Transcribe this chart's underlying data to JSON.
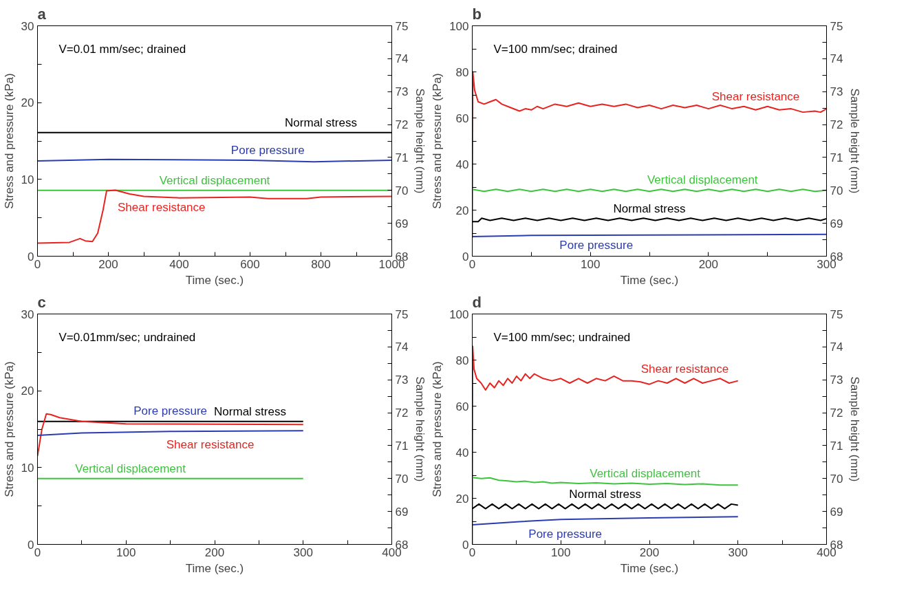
{
  "chart_data": [
    {
      "type": "line",
      "title": "a",
      "annotations": [
        "V=0.01 mm/sec; drained"
      ],
      "xlabel": "Time (sec.)",
      "ylabel": "Stress and pressure (kPa)",
      "y2label": "Sample height (mm)",
      "grid": false,
      "xlim": [
        0,
        1000
      ],
      "xticks": [
        0,
        {
          "value": 100,
          "label": null
        },
        200,
        {
          "value": 300,
          "label": null
        },
        400,
        {
          "value": 500,
          "label": null
        },
        600,
        {
          "value": 700,
          "label": null
        },
        800,
        {
          "value": 900,
          "label": null
        },
        1000
      ],
      "ylim": [
        0,
        30
      ],
      "yticks": [
        0,
        {
          "value": 5,
          "label": null
        },
        10,
        {
          "value": 15,
          "label": null
        },
        20,
        {
          "value": 25,
          "label": null
        },
        30
      ],
      "y2lim": [
        68,
        75
      ],
      "y2ticks": [
        68,
        {
          "value": 68.5,
          "label": null
        },
        69,
        {
          "value": 69.5,
          "label": null
        },
        70,
        {
          "value": 70.5,
          "label": null
        },
        71,
        {
          "value": 71.5,
          "label": null
        },
        72,
        {
          "value": 72.5,
          "label": null
        },
        73,
        {
          "value": 73.5,
          "label": null
        },
        74,
        {
          "value": 74.5,
          "label": null
        },
        75
      ],
      "series": [
        {
          "name": "Normal stress",
          "color": "#000000",
          "x": [
            0,
            1000
          ],
          "values": [
            16.1,
            16.1
          ]
        },
        {
          "name": "Pore pressure",
          "color": "#2b3bb0",
          "x": [
            0,
            200,
            600,
            780,
            1000
          ],
          "values": [
            12.4,
            12.6,
            12.5,
            12.3,
            12.5
          ]
        },
        {
          "name": "Vertical displacement",
          "color": "#3cc43c",
          "axis": "y2",
          "x": [
            0,
            1000
          ],
          "values": [
            70.0,
            70.0
          ]
        },
        {
          "name": "Shear resistance",
          "color": "#e8231f",
          "x": [
            0,
            90,
            120,
            135,
            155,
            170,
            185,
            195,
            220,
            260,
            300,
            400,
            600,
            650,
            760,
            800,
            1000
          ],
          "values": [
            1.7,
            1.8,
            2.3,
            2.0,
            1.9,
            3.0,
            6.0,
            8.5,
            8.6,
            8.1,
            7.8,
            7.6,
            7.7,
            7.5,
            7.5,
            7.7,
            7.8
          ]
        }
      ]
    },
    {
      "type": "line",
      "title": "b",
      "annotations": [
        "V=100 mm/sec; drained"
      ],
      "xlabel": "Time (sec.)",
      "ylabel": "Stress and pressure (kPa)",
      "y2label": "Sample height (mm)",
      "grid": false,
      "xlim": [
        0,
        300
      ],
      "xticks": [
        0,
        {
          "value": 50,
          "label": null
        },
        100,
        {
          "value": 150,
          "label": null
        },
        200,
        {
          "value": 250,
          "label": null
        },
        300
      ],
      "ylim": [
        0,
        100
      ],
      "yticks": [
        0,
        {
          "value": 10,
          "label": null
        },
        20,
        {
          "value": 30,
          "label": null
        },
        40,
        {
          "value": 50,
          "label": null
        },
        60,
        {
          "value": 70,
          "label": null
        },
        80,
        {
          "value": 90,
          "label": null
        },
        100
      ],
      "y2lim": [
        68,
        75
      ],
      "y2ticks": [
        68,
        {
          "value": 68.5,
          "label": null
        },
        69,
        {
          "value": 69.5,
          "label": null
        },
        70,
        {
          "value": 70.5,
          "label": null
        },
        71,
        {
          "value": 71.5,
          "label": null
        },
        72,
        {
          "value": 72.5,
          "label": null
        },
        73,
        {
          "value": 73.5,
          "label": null
        },
        74,
        {
          "value": 74.5,
          "label": null
        },
        75
      ],
      "series": [
        {
          "name": "Shear resistance",
          "color": "#e8231f",
          "x": [
            0,
            0.5,
            2,
            5,
            10,
            15,
            20,
            25,
            30,
            40,
            45,
            50,
            55,
            60,
            70,
            80,
            90,
            100,
            110,
            120,
            130,
            140,
            150,
            160,
            170,
            180,
            190,
            200,
            210,
            220,
            230,
            240,
            250,
            260,
            270,
            280,
            290,
            295,
            300
          ],
          "values": [
            8,
            80,
            72,
            67,
            66,
            67,
            68,
            66,
            65,
            63,
            64,
            63.5,
            65,
            64,
            66,
            65,
            66.5,
            65,
            66,
            65,
            66,
            64.5,
            65.5,
            64,
            65.5,
            64.5,
            65.5,
            64,
            65.5,
            64,
            65,
            63.5,
            65,
            63.5,
            64,
            62.5,
            63,
            62.5,
            64
          ]
        },
        {
          "name": "Vertical displacement",
          "color": "#3cc43c",
          "axis": "y2",
          "x": [
            0,
            10,
            20,
            30,
            40,
            50,
            60,
            70,
            80,
            90,
            100,
            110,
            120,
            130,
            140,
            150,
            160,
            170,
            180,
            190,
            200,
            210,
            220,
            230,
            240,
            250,
            260,
            270,
            280,
            290,
            300
          ],
          "values": [
            70.03,
            69.97,
            70.03,
            69.97,
            70.03,
            69.97,
            70.03,
            69.97,
            70.03,
            69.97,
            70.03,
            69.97,
            70.03,
            69.97,
            70.03,
            69.97,
            70.03,
            69.97,
            70.03,
            69.97,
            70.03,
            69.97,
            70.03,
            69.97,
            70.03,
            69.97,
            70.03,
            69.97,
            70.03,
            69.97,
            70.0
          ]
        },
        {
          "name": "Normal stress",
          "color": "#000000",
          "x": [
            0,
            5,
            8,
            15,
            25,
            35,
            45,
            55,
            65,
            75,
            85,
            95,
            105,
            115,
            125,
            135,
            145,
            155,
            165,
            175,
            185,
            195,
            205,
            215,
            225,
            235,
            245,
            255,
            265,
            275,
            285,
            295,
            300
          ],
          "values": [
            15,
            15,
            16.5,
            15.5,
            16.5,
            15.5,
            16.5,
            15.5,
            16.5,
            15.5,
            16.5,
            15.5,
            16.5,
            15.5,
            16.5,
            15.5,
            16.5,
            15.5,
            16.5,
            15.5,
            16.5,
            15.5,
            16.5,
            15.5,
            16.5,
            15.5,
            16.5,
            15.5,
            16.5,
            15.5,
            16.5,
            15.5,
            16.3
          ]
        },
        {
          "name": "Pore pressure",
          "color": "#2b3bb0",
          "x": [
            0,
            50,
            300
          ],
          "values": [
            8.5,
            9,
            9.5
          ]
        }
      ]
    },
    {
      "type": "line",
      "title": "c",
      "annotations": [
        "V=0.01mm/sec; undrained"
      ],
      "xlabel": "Time (sec.)",
      "ylabel": "Stress and pressure (kPa)",
      "y2label": "Sample height (mm)",
      "grid": false,
      "xlim": [
        0,
        400
      ],
      "xticks": [
        0,
        {
          "value": 50,
          "label": null
        },
        100,
        {
          "value": 150,
          "label": null
        },
        200,
        {
          "value": 250,
          "label": null
        },
        300,
        {
          "value": 350,
          "label": null
        },
        400
      ],
      "ylim": [
        0,
        30
      ],
      "yticks": [
        0,
        {
          "value": 5,
          "label": null
        },
        10,
        {
          "value": 15,
          "label": null
        },
        20,
        {
          "value": 25,
          "label": null
        },
        30
      ],
      "y2lim": [
        68,
        75
      ],
      "y2ticks": [
        68,
        {
          "value": 68.5,
          "label": null
        },
        69,
        {
          "value": 69.5,
          "label": null
        },
        70,
        {
          "value": 70.5,
          "label": null
        },
        71,
        {
          "value": 71.5,
          "label": null
        },
        72,
        {
          "value": 72.5,
          "label": null
        },
        73,
        {
          "value": 73.5,
          "label": null
        },
        74,
        {
          "value": 74.5,
          "label": null
        },
        75
      ],
      "series": [
        {
          "name": "Normal stress",
          "color": "#000000",
          "x": [
            0,
            300
          ],
          "values": [
            16,
            16
          ]
        },
        {
          "name": "Shear resistance",
          "color": "#e8231f",
          "x": [
            0,
            5,
            10,
            15,
            25,
            50,
            100,
            300
          ],
          "values": [
            11.5,
            15,
            17,
            16.9,
            16.5,
            16.0,
            15.7,
            15.6
          ]
        },
        {
          "name": "Pore pressure",
          "color": "#2b3bb0",
          "x": [
            0,
            50,
            150,
            300
          ],
          "values": [
            14.2,
            14.5,
            14.7,
            14.8
          ]
        },
        {
          "name": "Vertical displacement",
          "color": "#3cc43c",
          "axis": "y2",
          "x": [
            0,
            300
          ],
          "values": [
            70.0,
            70.0
          ]
        }
      ]
    },
    {
      "type": "line",
      "title": "d",
      "annotations": [
        "V=100 mm/sec; undrained"
      ],
      "xlabel": "Time (sec.)",
      "ylabel": "Stress and pressure (kPa)",
      "y2label": "Sample height (mm)",
      "grid": false,
      "xlim": [
        0,
        400
      ],
      "xticks": [
        0,
        {
          "value": 50,
          "label": null
        },
        100,
        {
          "value": 150,
          "label": null
        },
        200,
        {
          "value": 250,
          "label": null
        },
        300,
        {
          "value": 350,
          "label": null
        },
        400
      ],
      "ylim": [
        0,
        100
      ],
      "yticks": [
        0,
        {
          "value": 10,
          "label": null
        },
        20,
        {
          "value": 30,
          "label": null
        },
        40,
        {
          "value": 50,
          "label": null
        },
        60,
        {
          "value": 70,
          "label": null
        },
        80,
        {
          "value": 90,
          "label": null
        },
        100
      ],
      "y2lim": [
        68,
        75
      ],
      "y2ticks": [
        68,
        {
          "value": 68.5,
          "label": null
        },
        69,
        {
          "value": 69.5,
          "label": null
        },
        70,
        {
          "value": 70.5,
          "label": null
        },
        71,
        {
          "value": 71.5,
          "label": null
        },
        72,
        {
          "value": 72.5,
          "label": null
        },
        73,
        {
          "value": 73.5,
          "label": null
        },
        74,
        {
          "value": 74.5,
          "label": null
        },
        75
      ],
      "series": [
        {
          "name": "Shear resistance",
          "color": "#e8231f",
          "x": [
            0,
            0.5,
            2,
            5,
            10,
            15,
            20,
            25,
            30,
            35,
            40,
            45,
            50,
            55,
            60,
            65,
            70,
            80,
            90,
            100,
            110,
            120,
            130,
            140,
            150,
            160,
            170,
            180,
            190,
            200,
            210,
            220,
            230,
            240,
            250,
            260,
            270,
            280,
            290,
            300
          ],
          "values": [
            0,
            86,
            76,
            72,
            70,
            67,
            70,
            68,
            71,
            69,
            72,
            70,
            73,
            71,
            74,
            72,
            74,
            72,
            71,
            72,
            70,
            72,
            70,
            72,
            71,
            73,
            71,
            71,
            70.5,
            69.5,
            71,
            70,
            72,
            70,
            72,
            70,
            71,
            72,
            70,
            71
          ]
        },
        {
          "name": "Vertical displacement",
          "color": "#3cc43c",
          "axis": "y2",
          "x": [
            0,
            10,
            20,
            30,
            40,
            50,
            60,
            70,
            80,
            90,
            100,
            120,
            140,
            160,
            180,
            200,
            220,
            240,
            260,
            280,
            300
          ],
          "values": [
            70.03,
            70.0,
            70.02,
            69.95,
            69.93,
            69.9,
            69.92,
            69.88,
            69.9,
            69.86,
            69.88,
            69.85,
            69.87,
            69.84,
            69.86,
            69.83,
            69.85,
            69.82,
            69.84,
            69.8,
            69.8
          ]
        },
        {
          "name": "Normal stress",
          "color": "#000000",
          "x": [
            0,
            7.5,
            15,
            22.5,
            30,
            37.5,
            45,
            52.5,
            60,
            67.5,
            75,
            82.5,
            90,
            97.5,
            105,
            112.5,
            120,
            127.5,
            135,
            142.5,
            150,
            157.5,
            165,
            172.5,
            180,
            187.5,
            195,
            202.5,
            210,
            217.5,
            225,
            232.5,
            240,
            247.5,
            255,
            262.5,
            270,
            277.5,
            285,
            292.5,
            300
          ],
          "values": [
            15.5,
            17.5,
            15.5,
            17.5,
            15.5,
            17.5,
            15.5,
            17.5,
            15.5,
            17.5,
            15.5,
            17.5,
            15.5,
            17.5,
            15.5,
            17.5,
            15.5,
            17.5,
            15.5,
            17.5,
            15.5,
            17.5,
            15.5,
            17.5,
            15.5,
            17.5,
            15.5,
            17.5,
            15.5,
            17.5,
            15.5,
            17.5,
            15.5,
            17.5,
            15.5,
            17.5,
            15.5,
            17.5,
            15.5,
            17.5,
            17
          ]
        },
        {
          "name": "Pore pressure",
          "color": "#2b3bb0",
          "x": [
            0,
            50,
            100,
            200,
            300
          ],
          "values": [
            8.5,
            9.8,
            10.8,
            11.5,
            12
          ]
        }
      ]
    }
  ]
}
